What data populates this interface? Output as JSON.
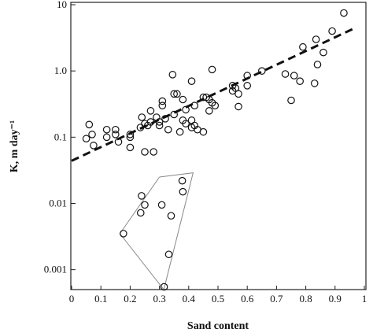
{
  "chart_data": {
    "type": "scatter",
    "xlabel": "Sand content",
    "ylabel": "K, m day⁻¹",
    "x": [
      0.05,
      0.06,
      0.07,
      0.075,
      0.12,
      0.12,
      0.15,
      0.15,
      0.16,
      0.2,
      0.2,
      0.2,
      0.235,
      0.24,
      0.25,
      0.25,
      0.26,
      0.27,
      0.27,
      0.28,
      0.29,
      0.3,
      0.3,
      0.31,
      0.31,
      0.32,
      0.33,
      0.345,
      0.35,
      0.35,
      0.36,
      0.37,
      0.38,
      0.38,
      0.39,
      0.39,
      0.41,
      0.41,
      0.41,
      0.42,
      0.42,
      0.43,
      0.45,
      0.45,
      0.46,
      0.47,
      0.47,
      0.48,
      0.48,
      0.49,
      0.55,
      0.55,
      0.56,
      0.57,
      0.57,
      0.6,
      0.6,
      0.65,
      0.73,
      0.75,
      0.76,
      0.78,
      0.79,
      0.83,
      0.835,
      0.84,
      0.86,
      0.89,
      0.93,
      0.236,
      0.239,
      0.25,
      0.177,
      0.308,
      0.34,
      0.378,
      0.38,
      0.332,
      0.316
    ],
    "values": [
      0.095,
      0.155,
      0.11,
      0.075,
      0.13,
      0.1,
      0.13,
      0.11,
      0.085,
      0.1,
      0.07,
      0.11,
      0.14,
      0.2,
      0.16,
      0.06,
      0.15,
      0.25,
      0.17,
      0.06,
      0.2,
      0.15,
      0.17,
      0.35,
      0.3,
      0.19,
      0.13,
      0.88,
      0.45,
      0.22,
      0.45,
      0.12,
      0.37,
      0.18,
      0.26,
      0.16,
      0.18,
      0.14,
      0.7,
      0.3,
      0.15,
      0.13,
      0.12,
      0.4,
      0.4,
      0.37,
      0.25,
      1.05,
      0.33,
      0.3,
      0.6,
      0.5,
      0.55,
      0.45,
      0.29,
      0.85,
      0.6,
      1.0,
      0.9,
      0.36,
      0.85,
      0.7,
      2.3,
      0.65,
      3.0,
      1.25,
      1.9,
      4.0,
      7.5,
      0.0072,
      0.013,
      0.0095,
      0.0035,
      0.0095,
      0.0065,
      0.022,
      0.015,
      0.0017,
      0.00055
    ],
    "marker_color": "#111111",
    "fit": {
      "x": [
        0,
        0.97
      ],
      "values": [
        0.044,
        4.5
      ],
      "color": "#111111"
    },
    "envelope": {
      "x": [
        0.3,
        0.415,
        0.315,
        0.165
      ],
      "values": [
        0.025,
        0.029,
        0.0005,
        0.0035
      ],
      "color": "#888888"
    },
    "xlim": [
      0,
      1
    ],
    "ylim": [
      0.0005,
      10
    ],
    "log_y": true,
    "xticks": [
      0,
      0.1,
      0.2,
      0.3,
      0.4,
      0.5,
      0.6,
      0.7,
      0.8,
      0.9,
      1
    ],
    "yticks": [
      0.001,
      0.01,
      0.1,
      {
        "value": 1,
        "label": "1.0"
      },
      10
    ]
  }
}
